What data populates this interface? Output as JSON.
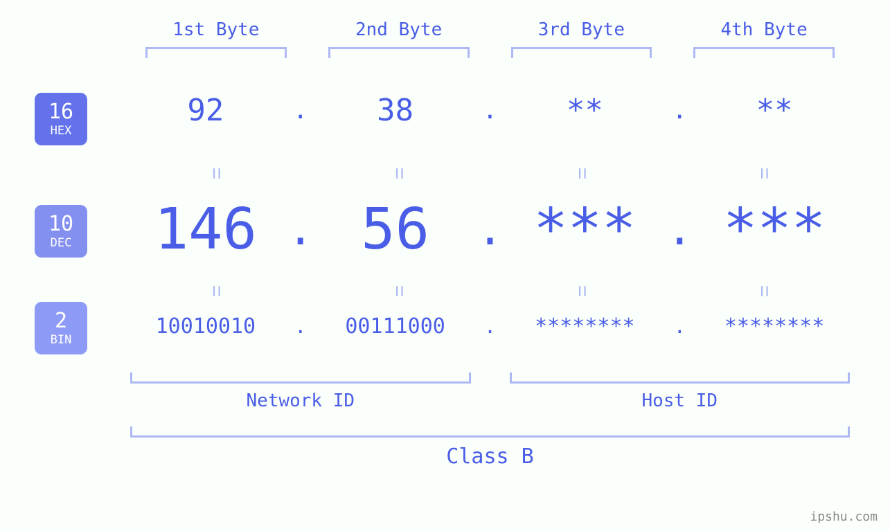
{
  "diagram": {
    "type": "infographic",
    "background_color": "#fafffb",
    "accent_color": "#4a5de6",
    "light_accent_color": "#aeb8f4",
    "badge_hex_bg": "#6372ea",
    "badge_dec_bg": "#8490f0",
    "badge_bin_bg": "#8e9bf6",
    "font_family": "monospace",
    "byte_headers": [
      "1st Byte",
      "2nd Byte",
      "3rd Byte",
      "4th Byte"
    ],
    "bases": [
      {
        "num": "16",
        "name": "HEX",
        "values": [
          "92",
          "38",
          "**",
          "**"
        ],
        "fontsize": 44,
        "sep_fontsize": 36
      },
      {
        "num": "10",
        "name": "DEC",
        "values": [
          "146",
          "56",
          "***",
          "***"
        ],
        "fontsize": 82,
        "sep_fontsize": 64
      },
      {
        "num": "2",
        "name": "BIN",
        "values": [
          "10010010",
          "00111000",
          "********",
          "********"
        ],
        "fontsize": 30,
        "sep_fontsize": 28
      }
    ],
    "network_label": "Network ID",
    "host_label": "Host ID",
    "class_label": "Class B",
    "watermark": "ipshu.com"
  }
}
